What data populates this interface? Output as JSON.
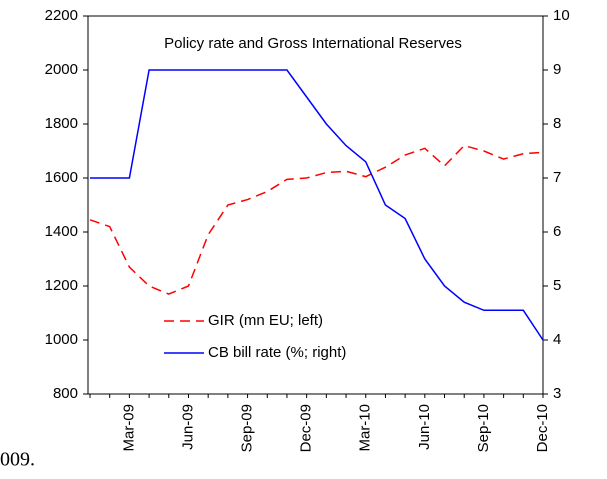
{
  "chart_data": {
    "type": "line",
    "title": "Policy rate and Gross International Reserves",
    "categories": [
      null,
      null,
      "Mar-09",
      null,
      null,
      "Jun-09",
      null,
      null,
      "Sep-09",
      null,
      null,
      "Dec-09",
      null,
      null,
      "Mar-10",
      null,
      null,
      "Jun-10",
      null,
      null,
      "Sep-10",
      null,
      null,
      "Dec-10"
    ],
    "series": [
      {
        "name": "GIR (mn EU; left)",
        "color": "#ff0000",
        "dash": true,
        "axis": "y",
        "values": [
          1445,
          1420,
          1270,
          1200,
          1170,
          1200,
          1390,
          1500,
          1520,
          1550,
          1595,
          1600,
          1620,
          1625,
          1605,
          1640,
          1685,
          1710,
          1645,
          1720,
          1700,
          1670,
          1690,
          1695
        ]
      },
      {
        "name": "CB bill rate (%; right)",
        "color": "#0000ff",
        "dash": false,
        "axis": "y2",
        "values": [
          7,
          7,
          7,
          9,
          9,
          9,
          9,
          9,
          9,
          9,
          9,
          8.5,
          8.0,
          7.6,
          7.3,
          6.5,
          6.25,
          5.5,
          5.0,
          4.7,
          4.55,
          4.55,
          4.55,
          4.0
        ]
      }
    ],
    "ylim": [
      800,
      2200
    ],
    "yticks": [
      800,
      1000,
      1200,
      1400,
      1600,
      1800,
      2000,
      2200
    ],
    "y2lim": [
      3,
      10
    ],
    "y2ticks": [
      3,
      4,
      5,
      6,
      7,
      8,
      9,
      10
    ],
    "grid": false
  },
  "caption": "009."
}
